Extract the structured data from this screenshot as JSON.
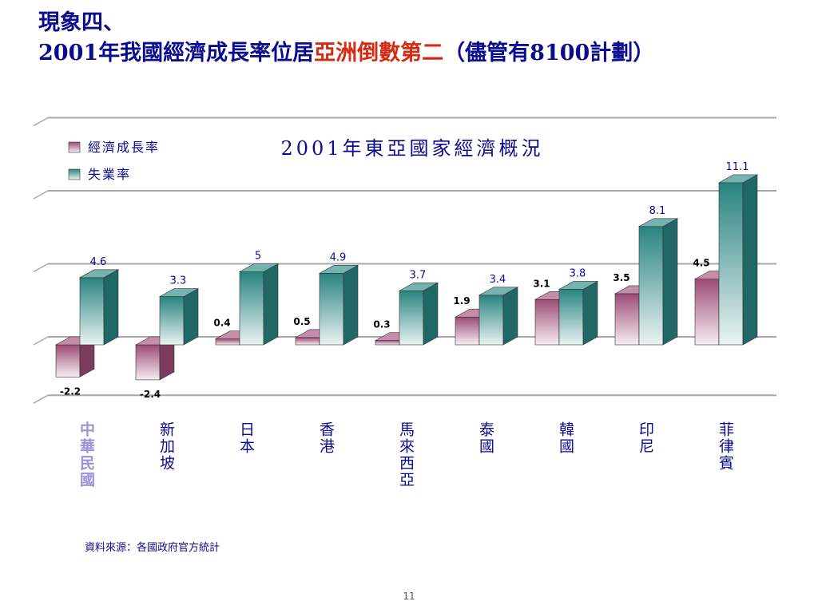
{
  "heading": {
    "line1": "現象四、",
    "line2_prefix": "2001年我國經濟成長率位居",
    "line2_accent": "亞洲倒數第二",
    "line2_suffix": "（儘管有8100計劃）"
  },
  "source": "資料來源：各國政府官方統計",
  "page_number": "11",
  "colors": {
    "growth": "#a44f7b",
    "unemployment": "#2a8a86",
    "title": "#0b0b8f",
    "highlight_category": "#9b93d9",
    "accent": "#d62b12"
  },
  "chart_data": {
    "type": "bar",
    "title": "2001年東亞國家經濟概況",
    "categories": [
      "中華民國",
      "新加坡",
      "日本",
      "香港",
      "馬來西亞",
      "泰國",
      "韓國",
      "印尼",
      "菲律賓"
    ],
    "highlight_category": "中華民國",
    "series": [
      {
        "name": "經濟成長率",
        "values": [
          -2.2,
          -2.4,
          0.4,
          0.5,
          0.3,
          1.9,
          3.1,
          3.5,
          4.5
        ]
      },
      {
        "name": "失業率",
        "values": [
          4.6,
          3.3,
          5,
          4.9,
          3.7,
          3.4,
          3.8,
          8.1,
          11.1
        ]
      }
    ],
    "ylim": [
      -4,
      12
    ],
    "grid": true,
    "legend_position": "top-left",
    "style": "3d"
  }
}
